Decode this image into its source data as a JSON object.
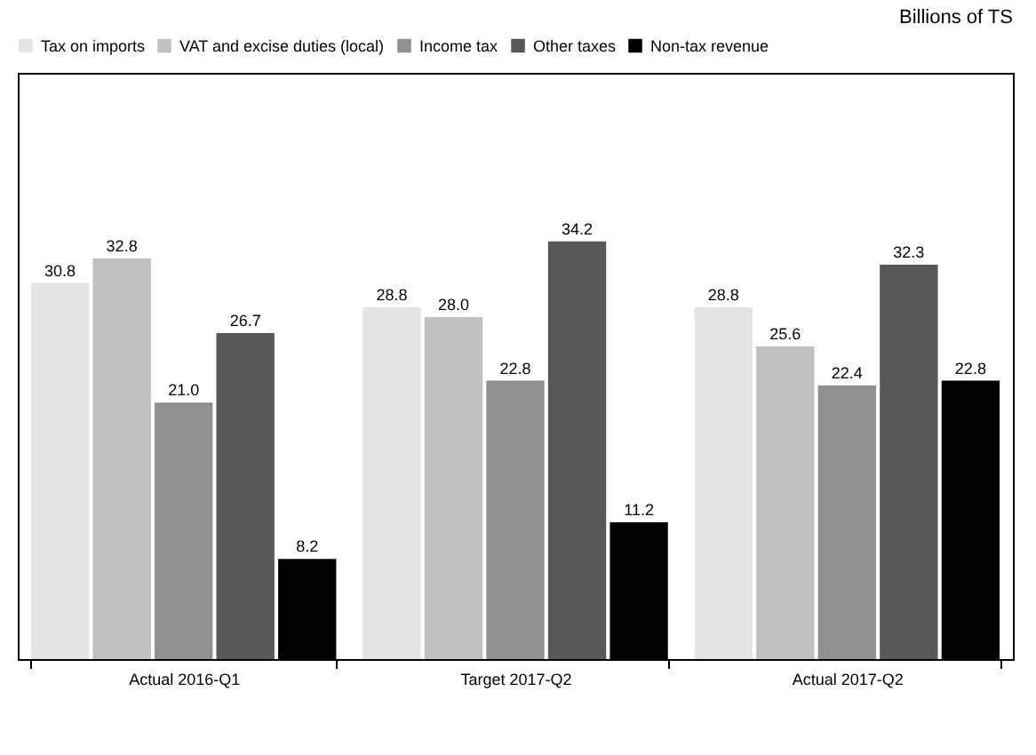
{
  "chart_data": {
    "type": "bar",
    "annotations": [
      "Billions of TS"
    ],
    "categories": [
      "Actual 2016-Q1",
      "Target 2017-Q2",
      "Actual 2017-Q2"
    ],
    "series": [
      {
        "name": "Tax on imports",
        "color": "#e4e4e6",
        "values": [
          30.8,
          28.8,
          28.8
        ],
        "value_labels": [
          "30.8",
          "28.8",
          "28.8"
        ]
      },
      {
        "name": "VAT and excise duties (local)",
        "color": "#c0c0c2",
        "values": [
          32.8,
          28.0,
          25.6
        ],
        "value_labels": [
          "32.8",
          "28.0",
          "25.6"
        ]
      },
      {
        "name": "Income tax",
        "color": "#909092",
        "values": [
          21.0,
          22.8,
          22.4
        ],
        "value_labels": [
          "21.0",
          "22.8",
          "22.4"
        ]
      },
      {
        "name": "Other taxes",
        "color": "#58585a",
        "values": [
          26.7,
          34.2,
          32.3
        ],
        "value_labels": [
          "26.7",
          "34.2",
          "32.3"
        ]
      },
      {
        "name": "Non-tax revenue",
        "color": "#000000",
        "values": [
          8.2,
          11.2,
          22.8
        ],
        "value_labels": [
          "8.2",
          "11.2",
          "22.8"
        ]
      }
    ],
    "ylim": [
      0,
      48
    ],
    "legend": "top"
  }
}
